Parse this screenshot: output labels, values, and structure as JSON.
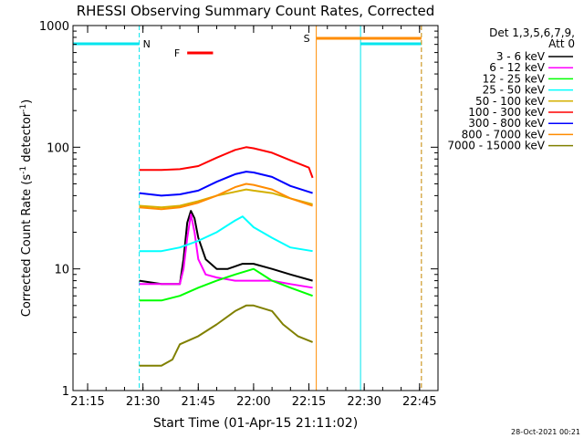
{
  "chart_data": {
    "type": "line",
    "title": "RHESSI Observing Summary Count Rates, Corrected",
    "xlabel": "Start Time (01-Apr-15 21:11:02)",
    "ylabel_parts": {
      "pre": "Corrected Count Rate (s",
      "sup1": "-1",
      "mid": " detector",
      "sup2": "-1",
      "post": ")"
    },
    "yscale": "log",
    "xlim": [
      "21:11:02",
      "22:50:00"
    ],
    "ylim": [
      1,
      1000
    ],
    "x_ticks": [
      "21:15",
      "21:30",
      "21:45",
      "22:00",
      "22:15",
      "22:30",
      "22:45"
    ],
    "y_ticks": [
      "1",
      "10",
      "100",
      "1000"
    ],
    "legend_header": [
      "Det 1,3,5,6,7,9,",
      "Att 0"
    ],
    "legend_placement": "right",
    "timestamp": "28-Oct-2021 00:21",
    "flags": [
      {
        "label": "N",
        "color": "#00e5ee",
        "type": "night",
        "intervals": [
          [
            "21:11:02",
            "21:29:00"
          ],
          [
            "22:29:00",
            "22:45:30"
          ]
        ]
      },
      {
        "label": "S",
        "color": "#ff8c00",
        "type": "saa",
        "intervals": [
          [
            "22:17:00",
            "22:45:30"
          ]
        ]
      },
      {
        "label": "F",
        "color": "#ff0000",
        "type": "flare",
        "intervals": [
          [
            "21:42:00",
            "21:49:00"
          ]
        ]
      }
    ],
    "series": [
      {
        "name": "3 - 6 keV",
        "color": "#000000",
        "points": [
          [
            "21:29",
            8
          ],
          [
            "21:35",
            7.5
          ],
          [
            "21:40",
            7.5
          ],
          [
            "21:41",
            12
          ],
          [
            "21:42",
            24
          ],
          [
            "21:43",
            30
          ],
          [
            "21:44",
            26
          ],
          [
            "21:45",
            18
          ],
          [
            "21:47",
            12
          ],
          [
            "21:50",
            10
          ],
          [
            "21:53",
            10
          ],
          [
            "21:57",
            11
          ],
          [
            "22:00",
            11
          ],
          [
            "22:05",
            10
          ],
          [
            "22:10",
            9
          ],
          [
            "22:16",
            8
          ]
        ]
      },
      {
        "name": "6 - 12 keV",
        "color": "#ff00ff",
        "points": [
          [
            "21:29",
            7.5
          ],
          [
            "21:35",
            7.5
          ],
          [
            "21:40",
            7.5
          ],
          [
            "21:41",
            10
          ],
          [
            "21:42",
            18
          ],
          [
            "21:43",
            28
          ],
          [
            "21:44",
            20
          ],
          [
            "21:45",
            12
          ],
          [
            "21:47",
            9
          ],
          [
            "21:50",
            8.5
          ],
          [
            "21:55",
            8
          ],
          [
            "22:00",
            8
          ],
          [
            "22:05",
            8
          ],
          [
            "22:10",
            7.5
          ],
          [
            "22:16",
            7
          ]
        ]
      },
      {
        "name": "12 - 25 keV",
        "color": "#00ff00",
        "points": [
          [
            "21:29",
            5.5
          ],
          [
            "21:35",
            5.5
          ],
          [
            "21:40",
            6
          ],
          [
            "21:45",
            7
          ],
          [
            "21:50",
            8
          ],
          [
            "21:55",
            9
          ],
          [
            "22:00",
            10
          ],
          [
            "22:05",
            8
          ],
          [
            "22:10",
            7
          ],
          [
            "22:16",
            6
          ]
        ]
      },
      {
        "name": "25 - 50 keV",
        "color": "#00ffff",
        "points": [
          [
            "21:29",
            14
          ],
          [
            "21:35",
            14
          ],
          [
            "21:40",
            15
          ],
          [
            "21:45",
            17
          ],
          [
            "21:50",
            20
          ],
          [
            "21:55",
            25
          ],
          [
            "21:57",
            27
          ],
          [
            "22:00",
            22
          ],
          [
            "22:05",
            18
          ],
          [
            "22:10",
            15
          ],
          [
            "22:16",
            14
          ]
        ]
      },
      {
        "name": "50 - 100 keV",
        "color": "#d4b000",
        "points": [
          [
            "21:29",
            33
          ],
          [
            "21:35",
            32
          ],
          [
            "21:40",
            33
          ],
          [
            "21:45",
            36
          ],
          [
            "21:50",
            40
          ],
          [
            "21:55",
            43
          ],
          [
            "21:58",
            45
          ],
          [
            "22:00",
            44
          ],
          [
            "22:05",
            42
          ],
          [
            "22:10",
            38
          ],
          [
            "22:16",
            34
          ]
        ]
      },
      {
        "name": "100 - 300 keV",
        "color": "#ff0000",
        "points": [
          [
            "21:29",
            65
          ],
          [
            "21:35",
            65
          ],
          [
            "21:40",
            66
          ],
          [
            "21:45",
            70
          ],
          [
            "21:50",
            82
          ],
          [
            "21:55",
            95
          ],
          [
            "21:58",
            100
          ],
          [
            "22:00",
            98
          ],
          [
            "22:05",
            90
          ],
          [
            "22:10",
            78
          ],
          [
            "22:15",
            68
          ],
          [
            "22:16",
            56
          ]
        ]
      },
      {
        "name": "300 - 800 keV",
        "color": "#0000ff",
        "points": [
          [
            "21:29",
            42
          ],
          [
            "21:35",
            40
          ],
          [
            "21:40",
            41
          ],
          [
            "21:45",
            44
          ],
          [
            "21:50",
            52
          ],
          [
            "21:55",
            60
          ],
          [
            "21:58",
            63
          ],
          [
            "22:00",
            62
          ],
          [
            "22:05",
            57
          ],
          [
            "22:10",
            48
          ],
          [
            "22:16",
            42
          ]
        ]
      },
      {
        "name": "800 - 7000 keV",
        "color": "#ff8c00",
        "points": [
          [
            "21:29",
            32
          ],
          [
            "21:35",
            31
          ],
          [
            "21:40",
            32
          ],
          [
            "21:45",
            35
          ],
          [
            "21:50",
            40
          ],
          [
            "21:55",
            47
          ],
          [
            "21:58",
            50
          ],
          [
            "22:00",
            49
          ],
          [
            "22:05",
            45
          ],
          [
            "22:10",
            38
          ],
          [
            "22:16",
            33
          ]
        ]
      },
      {
        "name": "7000 - 15000 keV",
        "color": "#808000",
        "points": [
          [
            "21:29",
            1.6
          ],
          [
            "21:35",
            1.6
          ],
          [
            "21:38",
            1.8
          ],
          [
            "21:40",
            2.4
          ],
          [
            "21:45",
            2.8
          ],
          [
            "21:50",
            3.5
          ],
          [
            "21:55",
            4.5
          ],
          [
            "21:58",
            5
          ],
          [
            "22:00",
            5
          ],
          [
            "22:05",
            4.5
          ],
          [
            "22:08",
            3.5
          ],
          [
            "22:12",
            2.8
          ],
          [
            "22:16",
            2.5
          ]
        ]
      }
    ]
  }
}
